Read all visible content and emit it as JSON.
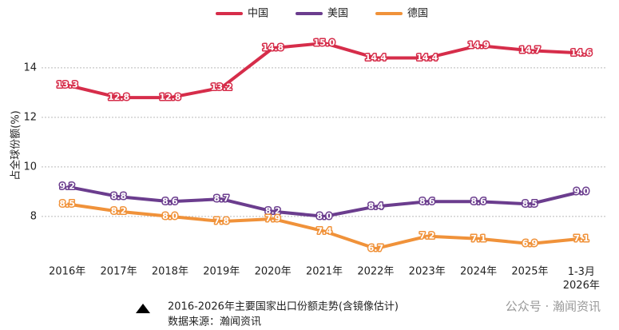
{
  "chart_data": {
    "type": "line",
    "y_label": "占全球份额(%)",
    "categories": [
      "2016年",
      "2017年",
      "2018年",
      "2019年",
      "2020年",
      "2021年",
      "2022年",
      "2023年",
      "2024年",
      "2025年",
      "1-3月\n2026年"
    ],
    "series": [
      {
        "name": "中国",
        "color": "#d62d4a",
        "values": [
          13.3,
          12.8,
          12.8,
          13.2,
          14.8,
          15.0,
          14.4,
          14.4,
          14.9,
          14.7,
          14.6
        ],
        "value_labels": [
          "13.3",
          "12.8",
          "12.8",
          "13.2",
          "14.8",
          "15.0",
          "14.4",
          "14.4",
          "14.9",
          "14.7",
          "14.6"
        ]
      },
      {
        "name": "美国",
        "color": "#6b3d8e",
        "values": [
          9.2,
          8.8,
          8.6,
          8.7,
          8.2,
          8.0,
          8.4,
          8.6,
          8.6,
          8.5,
          9.0
        ],
        "value_labels": [
          "9.2",
          "8.8",
          "8.6",
          "8.7",
          "8.2",
          "8.0",
          "8.4",
          "8.6",
          "8.6",
          "8.5",
          "9.0"
        ]
      },
      {
        "name": "德国",
        "color": "#f0923a",
        "values": [
          8.5,
          8.2,
          8.0,
          7.8,
          7.9,
          7.4,
          6.7,
          7.2,
          7.1,
          6.9,
          7.1
        ],
        "value_labels": [
          "8.5",
          "8.2",
          "8.0",
          "7.8",
          "7.9",
          "7.4",
          "6.7",
          "7.2",
          "7.1",
          "6.9",
          "7.1"
        ]
      }
    ],
    "ylim": [
      6.35,
      15.45
    ],
    "yticks": [
      8,
      10,
      12,
      14
    ],
    "grid": true,
    "legend": "top",
    "caption": "2016-2026年主要国家出口份额走势(含镜像估计)",
    "source": "数据来源：瀚闻资讯",
    "watermark": "公众号 · 瀚闻资讯"
  }
}
